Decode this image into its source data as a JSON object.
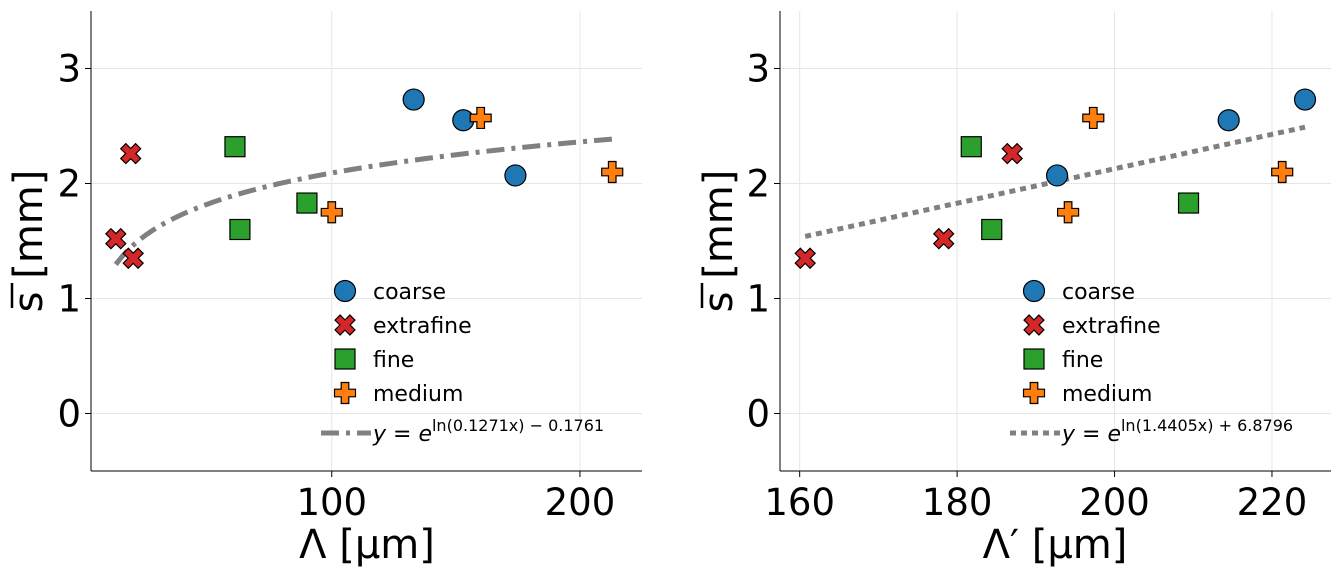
{
  "chart_data": [
    {
      "type": "scatter",
      "xlabel": "Λ [μm]",
      "ylabel": "s [mm]",
      "xlim": [
        3,
        225
      ],
      "ylim": [
        -0.5,
        3.5
      ],
      "xticks": [
        100,
        200
      ],
      "yticks": [
        0,
        1,
        2,
        3
      ],
      "grid": true,
      "legend_position": "bottom-right",
      "series": [
        {
          "name": "coarse",
          "marker": "circle",
          "color": "#1f77b4",
          "x": [
            133,
            153,
            174
          ],
          "y": [
            2.73,
            2.55,
            2.07
          ]
        },
        {
          "name": "extrafine",
          "marker": "x",
          "color": "#d62728",
          "x": [
            13,
            19,
            20
          ],
          "y": [
            1.52,
            2.26,
            1.35
          ]
        },
        {
          "name": "fine",
          "marker": "square",
          "color": "#2ca02c",
          "x": [
            61,
            63,
            90
          ],
          "y": [
            2.32,
            1.6,
            1.83
          ]
        },
        {
          "name": "medium",
          "marker": "plus",
          "color": "#ff7f0e",
          "x": [
            100,
            160,
            213
          ],
          "y": [
            1.75,
            2.57,
            2.1
          ]
        }
      ],
      "fit": {
        "name": "y = e^{ln(0.1271x) - 0.1761}",
        "label_base": "y = e",
        "label_exp": "ln(0.1271x) − 0.1761",
        "a": 0.1271,
        "b": -0.1761,
        "x_range": [
          13,
          213
        ],
        "style": "dashdot",
        "color": "#808080"
      }
    },
    {
      "type": "scatter",
      "xlabel": "Λ′ [μm]",
      "ylabel": "s [mm]",
      "xlim": [
        157.5,
        227.5
      ],
      "ylim": [
        -0.5,
        3.5
      ],
      "xticks": [
        160,
        180,
        200,
        220
      ],
      "yticks": [
        0,
        1,
        2,
        3
      ],
      "grid": true,
      "legend_position": "bottom-right",
      "series": [
        {
          "name": "coarse",
          "marker": "circle",
          "color": "#1f77b4",
          "x": [
            192.7,
            214.5,
            224.2
          ],
          "y": [
            2.07,
            2.55,
            2.73
          ]
        },
        {
          "name": "extrafine",
          "marker": "x",
          "color": "#d62728",
          "x": [
            160.7,
            178.3,
            187.0
          ],
          "y": [
            1.35,
            1.52,
            2.26
          ]
        },
        {
          "name": "fine",
          "marker": "square",
          "color": "#2ca02c",
          "x": [
            181.8,
            184.4,
            209.4
          ],
          "y": [
            2.32,
            1.6,
            1.83
          ]
        },
        {
          "name": "medium",
          "marker": "plus",
          "color": "#ff7f0e",
          "x": [
            194.1,
            197.3,
            221.3
          ],
          "y": [
            1.75,
            2.57,
            2.1
          ]
        }
      ],
      "fit": {
        "name": "y = e^{ln(1.4405x) + 6.8796}",
        "label_base": "y = e",
        "label_exp": "ln(1.4405x) + 6.8796",
        "x_range": [
          160.7,
          224.2
        ],
        "y_range": [
          1.54,
          2.49
        ],
        "style": "dotted",
        "color": "#808080"
      }
    }
  ]
}
